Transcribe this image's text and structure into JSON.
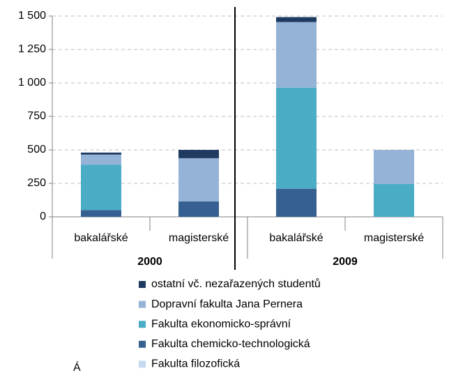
{
  "chart_data": {
    "type": "stacked_bar",
    "categories": [
      "bakalářské",
      "magisterské",
      "bakalářské",
      "magisterské"
    ],
    "groups": [
      "2000",
      "2009"
    ],
    "series": [
      {
        "name": "Fakulta filozofická",
        "color": "#c6d9f1",
        "values": [
          0,
          0,
          0,
          0
        ]
      },
      {
        "name": "Fakulta chemicko-technologická",
        "color": "#376092",
        "values": [
          50,
          115,
          210,
          0
        ]
      },
      {
        "name": "Fakulta ekonomicko-správní",
        "color": "#4bacc6",
        "values": [
          340,
          0,
          755,
          245
        ]
      },
      {
        "name": "Dopravní fakulta Jana Pernera",
        "color": "#95b3d7",
        "values": [
          75,
          323,
          490,
          255
        ]
      },
      {
        "name": "ostatní vč. nezařazených studentů",
        "color": "#1f3a60",
        "values": [
          15,
          62,
          37,
          0
        ]
      }
    ],
    "ylim": [
      0,
      1500
    ],
    "yticks": [
      0,
      250,
      500,
      750,
      {
        "value": 1000,
        "label": "1 000"
      },
      {
        "value": 1250,
        "label": "1 250"
      },
      {
        "value": 1500,
        "label": "1 500"
      }
    ],
    "grid": true,
    "legend": "bottom",
    "footnote": "Á"
  }
}
